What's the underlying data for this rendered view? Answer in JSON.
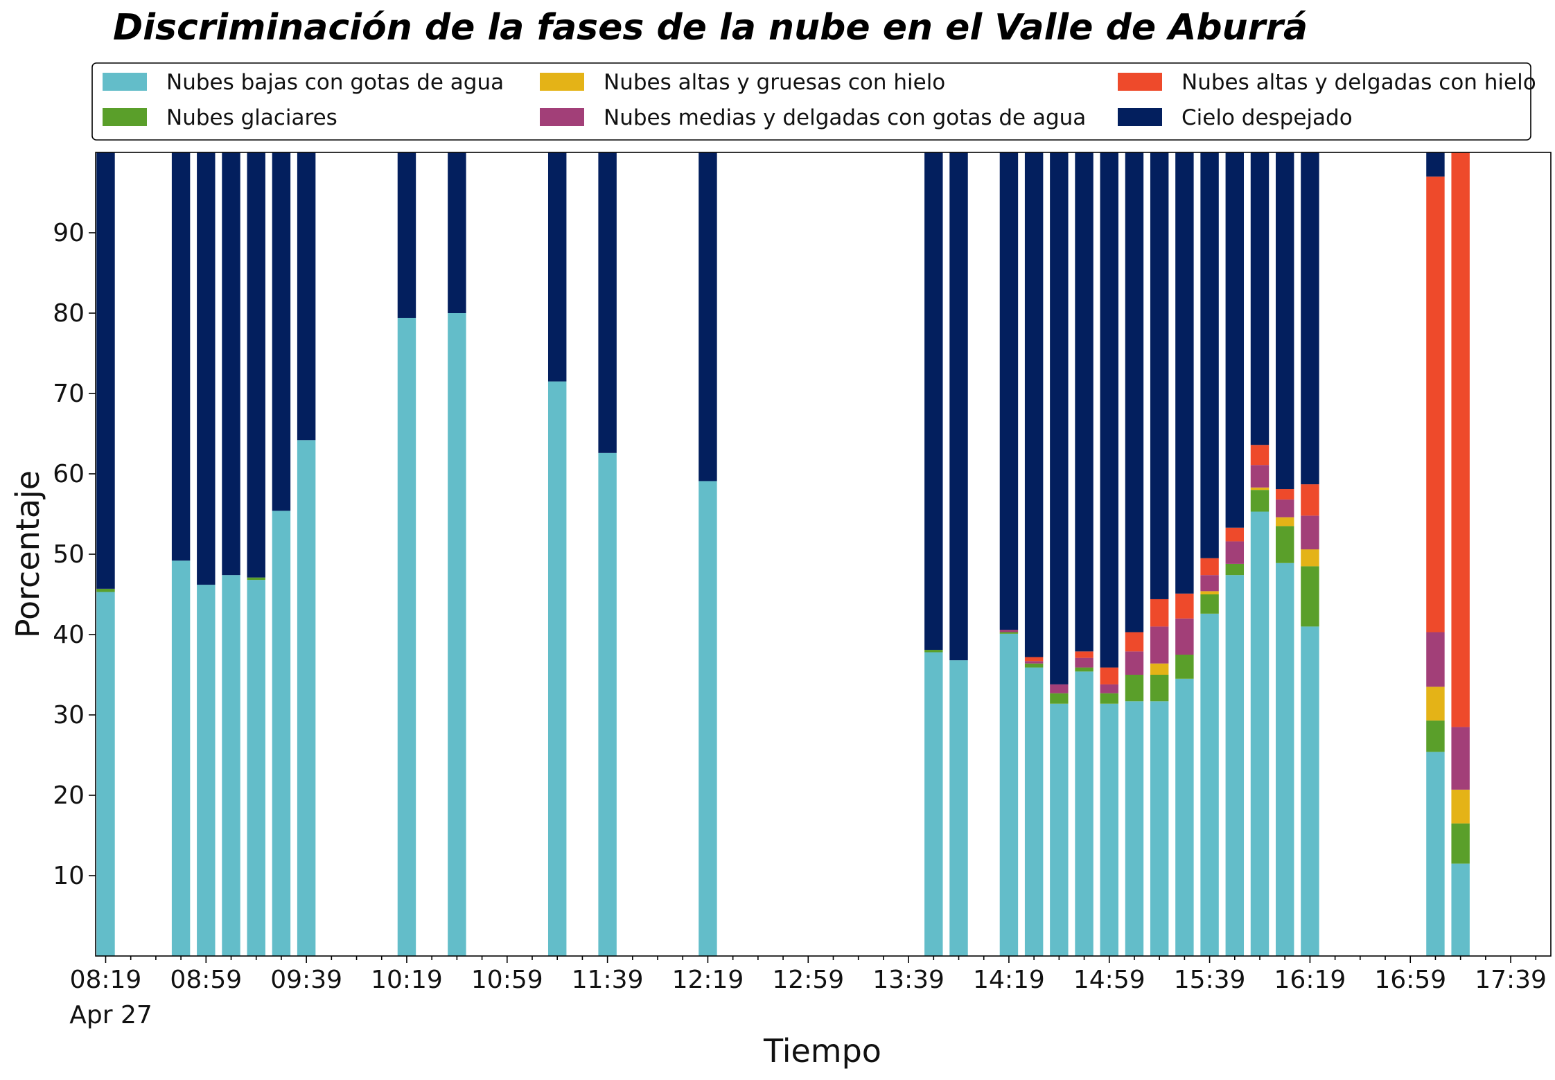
{
  "chart_data": {
    "type": "bar",
    "stacked": true,
    "title": "Discriminación de la fases de la nube en el Valle de Aburrá",
    "xlabel": "Tiempo",
    "ylabel": "Porcentaje",
    "ylim": [
      0,
      100
    ],
    "yticks": [
      10,
      20,
      30,
      40,
      50,
      60,
      70,
      80,
      90
    ],
    "xlim": [
      "08:15",
      "17:55"
    ],
    "xtick_labels": [
      "08:19",
      "08:59",
      "09:39",
      "10:19",
      "10:59",
      "11:39",
      "12:19",
      "12:59",
      "13:39",
      "14:19",
      "14:59",
      "15:39",
      "16:19",
      "16:59",
      "17:39"
    ],
    "date_label": "Apr 27",
    "legend_position": "top",
    "series": [
      {
        "name": "Nubes bajas con gotas de agua",
        "color": "#63BDC9"
      },
      {
        "name": "Nubes glaciares",
        "color": "#5A9F2A"
      },
      {
        "name": "Nubes altas y gruesas con hielo",
        "color": "#E4B317"
      },
      {
        "name": "Nubes medias y delgadas con gotas de agua",
        "color": "#A23F78"
      },
      {
        "name": "Nubes altas y delgadas con hielo",
        "color": "#EE4A2B"
      },
      {
        "name": "Cielo despejado",
        "color": "#031F5E"
      }
    ],
    "bars": [
      {
        "time": "08:19",
        "values": [
          45.3,
          0.4,
          0,
          0,
          0,
          54.3
        ]
      },
      {
        "time": "08:49",
        "values": [
          49.2,
          0,
          0,
          0,
          0,
          50.8
        ]
      },
      {
        "time": "08:59",
        "values": [
          46.2,
          0,
          0,
          0,
          0,
          53.8
        ]
      },
      {
        "time": "09:09",
        "values": [
          47.4,
          0,
          0,
          0,
          0,
          52.6
        ]
      },
      {
        "time": "09:19",
        "values": [
          46.8,
          0.3,
          0,
          0,
          0,
          52.9
        ]
      },
      {
        "time": "09:29",
        "values": [
          55.4,
          0,
          0,
          0,
          0,
          44.6
        ]
      },
      {
        "time": "09:39",
        "values": [
          64.2,
          0,
          0,
          0,
          0,
          35.8
        ]
      },
      {
        "time": "10:19",
        "values": [
          79.4,
          0,
          0,
          0,
          0,
          20.6
        ]
      },
      {
        "time": "10:39",
        "values": [
          80.0,
          0,
          0,
          0,
          0,
          20.0
        ]
      },
      {
        "time": "11:19",
        "values": [
          71.5,
          0,
          0,
          0,
          0,
          28.5
        ]
      },
      {
        "time": "11:39",
        "values": [
          62.6,
          0,
          0,
          0,
          0,
          37.4
        ]
      },
      {
        "time": "12:19",
        "values": [
          59.1,
          0,
          0,
          0,
          0,
          40.9
        ]
      },
      {
        "time": "13:49",
        "values": [
          37.8,
          0.3,
          0,
          0,
          0,
          61.9
        ]
      },
      {
        "time": "13:59",
        "values": [
          36.8,
          0,
          0,
          0,
          0,
          63.2
        ]
      },
      {
        "time": "14:19",
        "values": [
          40.1,
          0.2,
          0,
          0.3,
          0,
          59.4
        ]
      },
      {
        "time": "14:29",
        "values": [
          35.9,
          0.5,
          0,
          0.3,
          0.5,
          62.8
        ]
      },
      {
        "time": "14:39",
        "values": [
          31.4,
          1.3,
          0,
          1.1,
          0,
          66.2
        ]
      },
      {
        "time": "14:49",
        "values": [
          35.4,
          0.5,
          0,
          1.2,
          0.8,
          62.1
        ]
      },
      {
        "time": "14:59",
        "values": [
          31.4,
          1.3,
          0,
          1.1,
          2.1,
          64.1
        ]
      },
      {
        "time": "15:09",
        "values": [
          31.7,
          3.3,
          0,
          2.9,
          2.4,
          59.7
        ]
      },
      {
        "time": "15:19",
        "values": [
          31.7,
          3.3,
          1.4,
          4.6,
          3.4,
          55.6
        ]
      },
      {
        "time": "15:29",
        "values": [
          34.5,
          3.0,
          0,
          4.5,
          3.1,
          54.9
        ]
      },
      {
        "time": "15:39",
        "values": [
          42.6,
          2.4,
          0.4,
          2.0,
          2.1,
          50.5
        ]
      },
      {
        "time": "15:49",
        "values": [
          47.4,
          1.4,
          0,
          2.8,
          1.7,
          46.7
        ]
      },
      {
        "time": "15:59",
        "values": [
          55.3,
          2.7,
          0.3,
          2.8,
          2.5,
          36.4
        ]
      },
      {
        "time": "16:09",
        "values": [
          48.9,
          4.6,
          1.1,
          2.2,
          1.3,
          41.9
        ]
      },
      {
        "time": "16:19",
        "values": [
          41.0,
          7.5,
          2.1,
          4.2,
          3.9,
          41.3
        ]
      },
      {
        "time": "17:09",
        "values": [
          25.4,
          3.9,
          4.2,
          6.8,
          56.7,
          3.0
        ]
      },
      {
        "time": "17:19",
        "values": [
          11.5,
          5.0,
          4.2,
          7.8,
          71.5,
          0
        ]
      }
    ]
  }
}
